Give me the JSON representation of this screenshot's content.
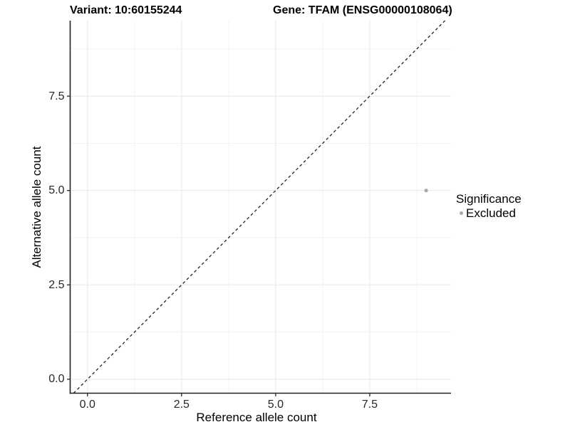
{
  "chart_data": {
    "type": "scatter",
    "title_left": "Variant: 10:60155244",
    "title_right": "Gene: TFAM (ENSG00000108064)",
    "xlabel": "Reference allele count",
    "ylabel": "Alternative allele count",
    "xlim": [
      -0.46,
      9.66
    ],
    "ylim": [
      -0.37,
      9.5
    ],
    "x_ticks": [
      0,
      2.5,
      5,
      7.5
    ],
    "y_ticks": [
      0,
      2.5,
      5,
      7.5
    ],
    "x_tick_labels": [
      "0.0",
      "2.5",
      "5.0",
      "7.5"
    ],
    "y_tick_labels": [
      "0.0",
      "2.5",
      "5.0",
      "7.5"
    ],
    "grid": {
      "major": true,
      "minor": true
    },
    "reference_line": {
      "equation": "y = x",
      "style": "dashed",
      "color": "#222222"
    },
    "series": [
      {
        "name": "Excluded",
        "color": "#A9A9A9",
        "points": [
          {
            "x": 9,
            "y": 5
          }
        ]
      }
    ],
    "legend": {
      "title": "Significance",
      "position": "right",
      "items": [
        {
          "label": "Excluded",
          "color": "#A9A9A9"
        }
      ]
    }
  },
  "colors": {
    "background": "#FFFFFF",
    "axis_line": "#222222",
    "tick_mark": "#333333",
    "tick_label": "#262626",
    "grid_major": "#E8E8E8",
    "grid_minor": "#F3F3F3",
    "text": "#000000"
  }
}
